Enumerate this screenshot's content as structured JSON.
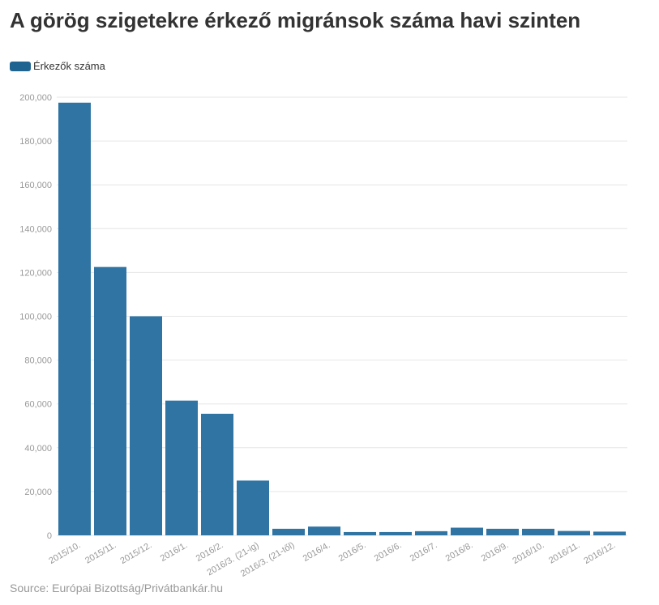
{
  "title": "A görög szigetekre érkező migránsok száma havi szinten",
  "source": "Source: Európai Bizottság/Privátbankár.hu",
  "colors": {
    "bar": "#2f74a3",
    "legend": "#1f6391",
    "grid": "#e6e6e6",
    "axis_text": "#999999"
  },
  "chart_data": {
    "type": "bar",
    "title": "A görög szigetekre érkező migránsok száma havi szinten",
    "xlabel": "",
    "ylabel": "",
    "legend_position": "top-left",
    "grid": true,
    "ylim": [
      0,
      200000
    ],
    "yticks": [
      0,
      20000,
      40000,
      60000,
      80000,
      100000,
      120000,
      140000,
      160000,
      180000,
      200000
    ],
    "ytick_labels": [
      "0",
      "20,000",
      "40,000",
      "60,000",
      "80,000",
      "100,000",
      "120,000",
      "140,000",
      "160,000",
      "180,000",
      "200,000"
    ],
    "categories": [
      "2015/10.",
      "2015/11.",
      "2015/12.",
      "2016/1.",
      "2016/2.",
      "2016/3. (21-ig)",
      "2016/3. (21-től)",
      "2016/4.",
      "2016/5.",
      "2016/6.",
      "2016/7.",
      "2016/8.",
      "2016/9.",
      "2016/10.",
      "2016/11.",
      "2016/12."
    ],
    "series": [
      {
        "name": "Érkezők száma",
        "values": [
          197500,
          122500,
          100000,
          61500,
          55500,
          25000,
          3000,
          4000,
          1500,
          1500,
          1900,
          3500,
          3000,
          3000,
          2000,
          1700
        ]
      }
    ]
  }
}
